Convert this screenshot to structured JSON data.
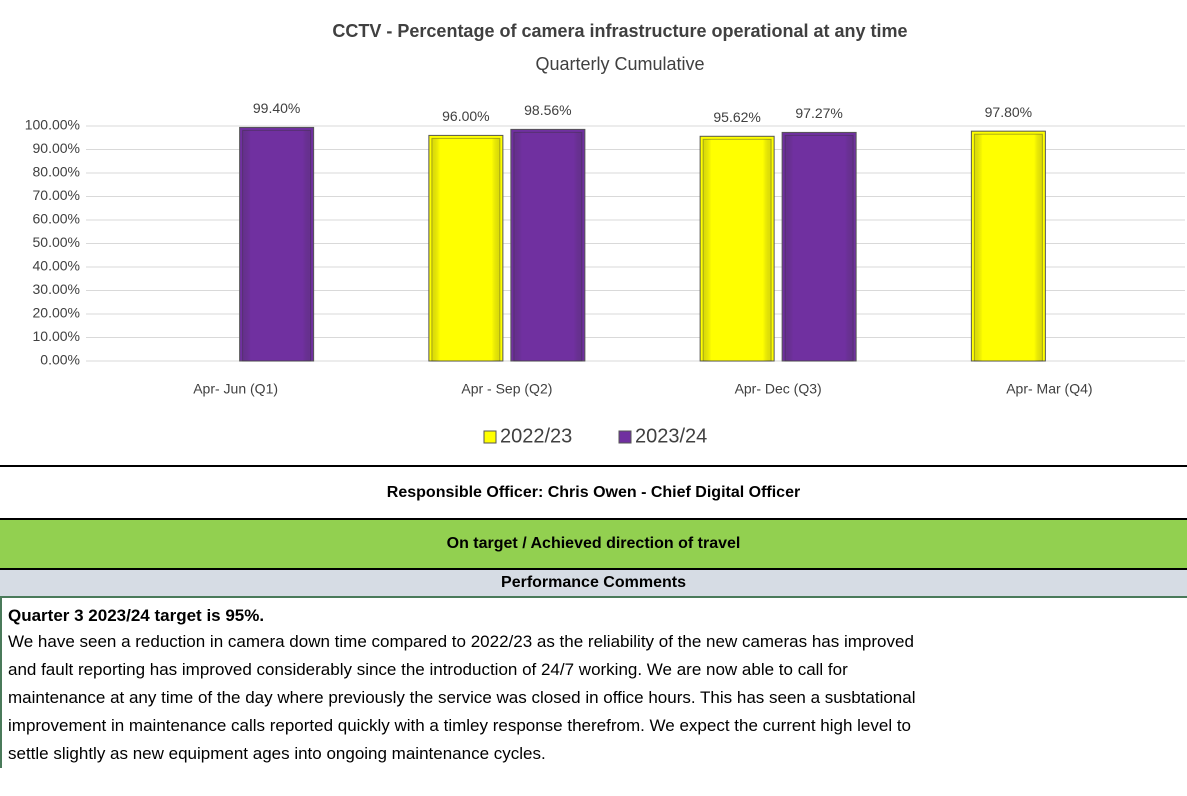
{
  "chart_data": {
    "type": "bar",
    "title": "CCTV - Percentage of camera infrastructure operational at any time",
    "subtitle": "Quarterly Cumulative",
    "categories": [
      "Apr- Jun  (Q1)",
      "Apr - Sep  (Q2)",
      "Apr- Dec  (Q3)",
      "Apr- Mar  (Q4)"
    ],
    "series": [
      {
        "name": "2022/23",
        "color": "#ffff00",
        "values": [
          null,
          96,
          95.62,
          97.8
        ],
        "value_labels": [
          null,
          "96.00%",
          "95.62%",
          "97.80%"
        ]
      },
      {
        "name": "2023/24",
        "color": "#7030a0",
        "values": [
          99.4,
          98.56,
          97.27,
          null
        ],
        "value_labels": [
          "99.40%",
          "98.56%",
          "97.27%",
          null
        ]
      }
    ],
    "ylim": [
      0,
      100
    ],
    "yticks": [
      {
        "value": 0,
        "label": "0.00%"
      },
      {
        "value": 10,
        "label": "10.00%"
      },
      {
        "value": 20,
        "label": "20.00%"
      },
      {
        "value": 30,
        "label": "30.00%"
      },
      {
        "value": 40,
        "label": "40.00%"
      },
      {
        "value": 50,
        "label": "50.00%"
      },
      {
        "value": 60,
        "label": "60.00%"
      },
      {
        "value": 70,
        "label": "70.00%"
      },
      {
        "value": 80,
        "label": "80.00%"
      },
      {
        "value": 90,
        "label": "90.00%"
      },
      {
        "value": 100,
        "label": "100.00%"
      }
    ],
    "grid": true,
    "legend": "bottom"
  },
  "officer": "Responsible Officer: Chris Owen - Chief Digital Officer",
  "status": "On target / Achieved direction of travel",
  "comments_header": "Performance Comments",
  "comments_title": "Quarter 3 2023/24 target is 95%.",
  "comments_lines": [
    "We have seen a reduction in camera down time compared to 2022/23  as  the reliability of the new cameras has improved",
    "and fault reporting has improved considerably since the introduction of 24/7 working. We are now able to call for",
    "maintenance at any time of the day where previously the service was closed in office hours. This has seen a susbtational",
    "improvement in maintenance calls reported quickly with a timley response therefrom. We expect the current high level to",
    "settle slightly as new  equipment ages into  ongoing maintenance cycles."
  ]
}
